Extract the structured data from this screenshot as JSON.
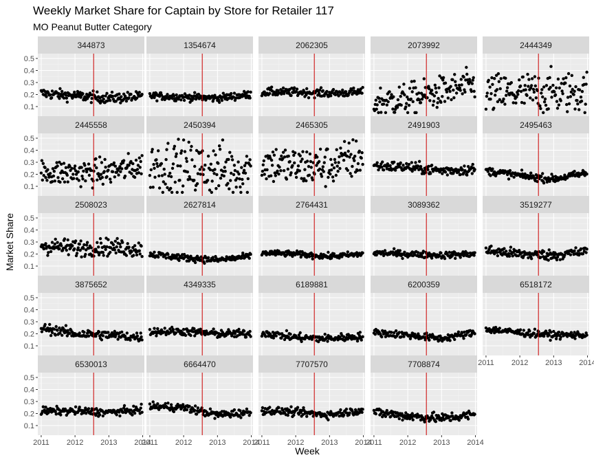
{
  "chart_data": {
    "type": "scatter",
    "title": "Weekly Market Share for Captain by Store for Retailer 117",
    "subtitle": "MO Peanut Butter Category",
    "xlabel": "Week",
    "ylabel": "Market Share",
    "x_ticks": [
      "2011",
      "2012",
      "2013",
      "2014"
    ],
    "y_ticks": [
      "0.1",
      "0.2",
      "0.3",
      "0.4",
      "0.5"
    ],
    "xlim": [
      2010.9,
      2014.05
    ],
    "ylim": [
      0.02,
      0.54
    ],
    "vline_x": 2012.55,
    "vline_color": "#cc0000",
    "point_color": "#000000",
    "panel_background": "#ebebeb",
    "strip_background": "#d9d9d9",
    "layout": "facet_wrap, 5 columns",
    "panels": [
      {
        "label": "344873",
        "pattern": {
          "kind": "flat",
          "base": 0.2,
          "noise": 0.022,
          "shape": [
            0.21,
            0.19,
            0.17,
            0.18
          ]
        }
      },
      {
        "label": "1354674",
        "pattern": {
          "kind": "flat",
          "base": 0.19,
          "noise": 0.016,
          "shape": [
            0.19,
            0.18,
            0.17,
            0.2
          ]
        }
      },
      {
        "label": "2062305",
        "pattern": {
          "kind": "flat",
          "base": 0.22,
          "noise": 0.017,
          "shape": [
            0.22,
            0.22,
            0.21,
            0.22
          ]
        }
      },
      {
        "label": "2073992",
        "pattern": {
          "kind": "trend",
          "base": 0.2,
          "noise": 0.065,
          "shape": [
            0.14,
            0.16,
            0.22,
            0.28
          ]
        }
      },
      {
        "label": "2444349",
        "pattern": {
          "kind": "scatter",
          "base": 0.22,
          "noise": 0.085,
          "shape": [
            0.2,
            0.21,
            0.22,
            0.22
          ]
        }
      },
      {
        "label": "2445558",
        "pattern": {
          "kind": "scatter",
          "base": 0.22,
          "noise": 0.055,
          "shape": [
            0.22,
            0.21,
            0.22,
            0.27
          ]
        }
      },
      {
        "label": "2450394",
        "pattern": {
          "kind": "scatter",
          "base": 0.25,
          "noise": 0.11,
          "shape": [
            0.28,
            0.25,
            0.24,
            0.23
          ]
        }
      },
      {
        "label": "2465305",
        "pattern": {
          "kind": "scatter",
          "base": 0.28,
          "noise": 0.085,
          "shape": [
            0.3,
            0.26,
            0.27,
            0.35
          ]
        }
      },
      {
        "label": "2491903",
        "pattern": {
          "kind": "flat",
          "base": 0.25,
          "noise": 0.022,
          "shape": [
            0.27,
            0.26,
            0.23,
            0.24
          ]
        }
      },
      {
        "label": "2495463",
        "pattern": {
          "kind": "u",
          "base": 0.19,
          "noise": 0.016,
          "shape": [
            0.23,
            0.19,
            0.16,
            0.21
          ]
        }
      },
      {
        "label": "2508023",
        "pattern": {
          "kind": "flat",
          "base": 0.25,
          "noise": 0.035,
          "shape": [
            0.27,
            0.25,
            0.26,
            0.24
          ]
        }
      },
      {
        "label": "2627814",
        "pattern": {
          "kind": "u",
          "base": 0.17,
          "noise": 0.014,
          "shape": [
            0.2,
            0.17,
            0.15,
            0.18
          ]
        }
      },
      {
        "label": "2764431",
        "pattern": {
          "kind": "flat",
          "base": 0.2,
          "noise": 0.012,
          "shape": [
            0.21,
            0.2,
            0.18,
            0.2
          ]
        }
      },
      {
        "label": "3089362",
        "pattern": {
          "kind": "flat",
          "base": 0.2,
          "noise": 0.014,
          "shape": [
            0.21,
            0.2,
            0.19,
            0.2
          ]
        }
      },
      {
        "label": "3519277",
        "pattern": {
          "kind": "flat",
          "base": 0.21,
          "noise": 0.022,
          "shape": [
            0.23,
            0.2,
            0.19,
            0.22
          ]
        }
      },
      {
        "label": "3875652",
        "pattern": {
          "kind": "down",
          "base": 0.19,
          "noise": 0.02,
          "shape": [
            0.25,
            0.2,
            0.19,
            0.17
          ]
        }
      },
      {
        "label": "4349335",
        "pattern": {
          "kind": "flat",
          "base": 0.21,
          "noise": 0.017,
          "shape": [
            0.22,
            0.22,
            0.2,
            0.2
          ]
        }
      },
      {
        "label": "6189881",
        "pattern": {
          "kind": "u",
          "base": 0.18,
          "noise": 0.017,
          "shape": [
            0.21,
            0.17,
            0.16,
            0.18
          ]
        }
      },
      {
        "label": "6200359",
        "pattern": {
          "kind": "u",
          "base": 0.18,
          "noise": 0.015,
          "shape": [
            0.21,
            0.19,
            0.16,
            0.21
          ]
        }
      },
      {
        "label": "6518172",
        "pattern": {
          "kind": "down",
          "base": 0.2,
          "noise": 0.015,
          "shape": [
            0.24,
            0.21,
            0.19,
            0.19
          ]
        }
      },
      {
        "label": "6530013",
        "pattern": {
          "kind": "flat",
          "base": 0.22,
          "noise": 0.016,
          "shape": [
            0.22,
            0.22,
            0.21,
            0.23
          ]
        }
      },
      {
        "label": "6664470",
        "pattern": {
          "kind": "step",
          "base": 0.22,
          "noise": 0.017,
          "shape": [
            0.26,
            0.25,
            0.19,
            0.21
          ]
        }
      },
      {
        "label": "7707570",
        "pattern": {
          "kind": "u",
          "base": 0.21,
          "noise": 0.016,
          "shape": [
            0.23,
            0.21,
            0.19,
            0.23
          ]
        }
      },
      {
        "label": "7708874",
        "pattern": {
          "kind": "u",
          "base": 0.18,
          "noise": 0.02,
          "shape": [
            0.21,
            0.18,
            0.16,
            0.19
          ]
        }
      }
    ]
  }
}
